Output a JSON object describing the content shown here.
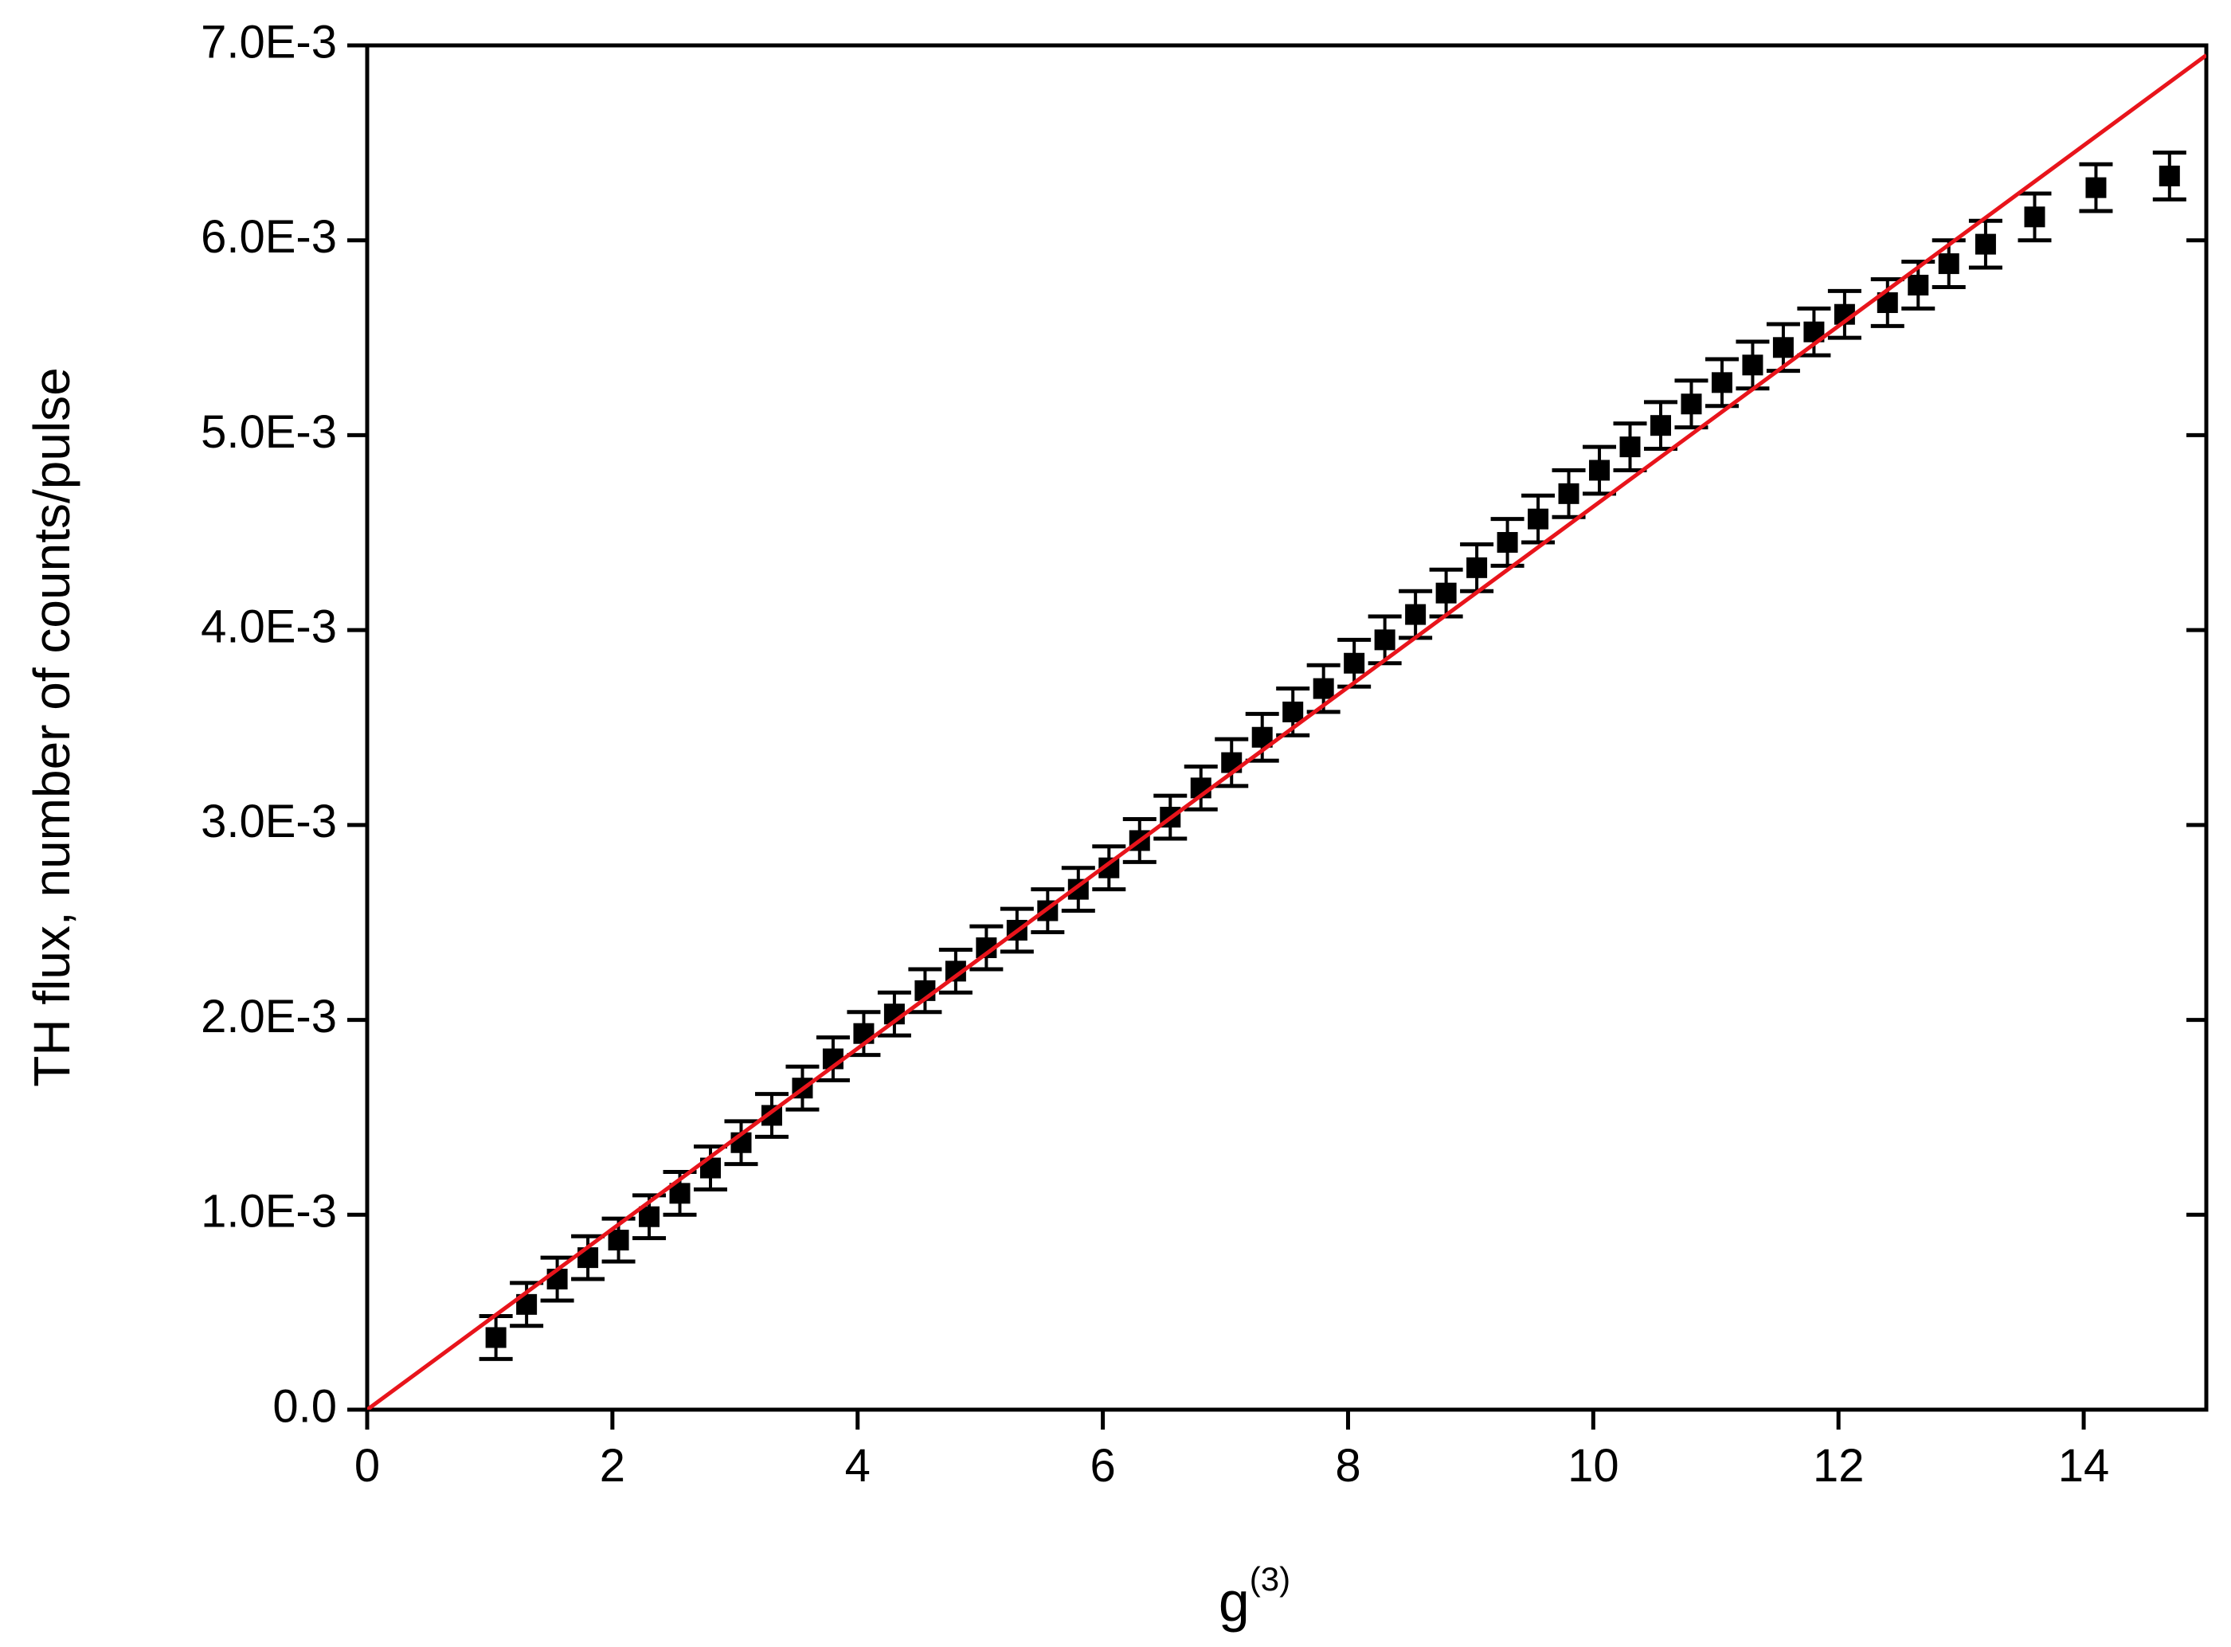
{
  "chart_data": {
    "type": "scatter",
    "x_label": "g",
    "x_label_superscript": "(3)",
    "y_label": "TH flux, number of counts/pulse",
    "xlim": [
      0,
      15
    ],
    "xticks": [
      0,
      2,
      4,
      6,
      8,
      10,
      12,
      14
    ],
    "ylim": [
      0,
      0.007
    ],
    "yticks": [
      {
        "value": 0,
        "label": "0.0"
      },
      {
        "value": 0.001,
        "label": "1.0E-3"
      },
      {
        "value": 0.002,
        "label": "2.0E-3"
      },
      {
        "value": 0.003,
        "label": "3.0E-3"
      },
      {
        "value": 0.004,
        "label": "4.0E-3"
      },
      {
        "value": 0.005,
        "label": "5.0E-3"
      },
      {
        "value": 0.006,
        "label": "6.0E-3"
      },
      {
        "value": 0.007,
        "label": "7.0E-3"
      }
    ],
    "series": [
      {
        "type": "scatter",
        "color": "#000000",
        "x": [
          1.05,
          1.3,
          1.55,
          1.8,
          2.05,
          2.3,
          2.55,
          2.8,
          3.05,
          3.3,
          3.55,
          3.8,
          4.05,
          4.3,
          4.55,
          4.8,
          5.05,
          5.3,
          5.55,
          5.8,
          6.05,
          6.3,
          6.55,
          6.8,
          7.05,
          7.3,
          7.55,
          7.8,
          8.05,
          8.3,
          8.55,
          8.8,
          9.05,
          9.3,
          9.55,
          9.8,
          10.05,
          10.3,
          10.55,
          10.8,
          11.05,
          11.3,
          11.55,
          11.8,
          12.05,
          12.4,
          12.65,
          12.9,
          13.2,
          13.6,
          14.1,
          14.7
        ],
        "values": [
          0.00037,
          0.00054,
          0.00067,
          0.00078,
          0.00087,
          0.00099,
          0.00111,
          0.00124,
          0.00137,
          0.00151,
          0.00165,
          0.0018,
          0.00193,
          0.00203,
          0.00215,
          0.00225,
          0.00237,
          0.00246,
          0.00256,
          0.00267,
          0.00278,
          0.00292,
          0.00304,
          0.00319,
          0.00332,
          0.00345,
          0.00358,
          0.0037,
          0.00383,
          0.00395,
          0.00408,
          0.00419,
          0.00432,
          0.00445,
          0.00457,
          0.0047,
          0.00482,
          0.00494,
          0.00505,
          0.00516,
          0.00527,
          0.00536,
          0.00545,
          0.00553,
          0.00562,
          0.00568,
          0.00577,
          0.00588,
          0.00598,
          0.00612,
          0.00627,
          0.00633
        ],
        "errors": [
          0.00011,
          0.00011,
          0.00011,
          0.00011,
          0.00011,
          0.00011,
          0.00011,
          0.00011,
          0.00011,
          0.00011,
          0.00011,
          0.00011,
          0.00011,
          0.00011,
          0.00011,
          0.00011,
          0.00011,
          0.00011,
          0.00011,
          0.00011,
          0.00011,
          0.00011,
          0.00011,
          0.00011,
          0.00012,
          0.00012,
          0.00012,
          0.00012,
          0.00012,
          0.00012,
          0.00012,
          0.00012,
          0.00012,
          0.00012,
          0.00012,
          0.00012,
          0.00012,
          0.00012,
          0.00012,
          0.00012,
          0.00012,
          0.00012,
          0.00012,
          0.00012,
          0.00012,
          0.00012,
          0.00012,
          0.00012,
          0.00012,
          0.00012,
          0.00012,
          0.00012
        ]
      },
      {
        "type": "line",
        "color": "#e8141b",
        "x": [
          0,
          15
        ],
        "values": [
          0,
          0.00695
        ]
      }
    ]
  }
}
